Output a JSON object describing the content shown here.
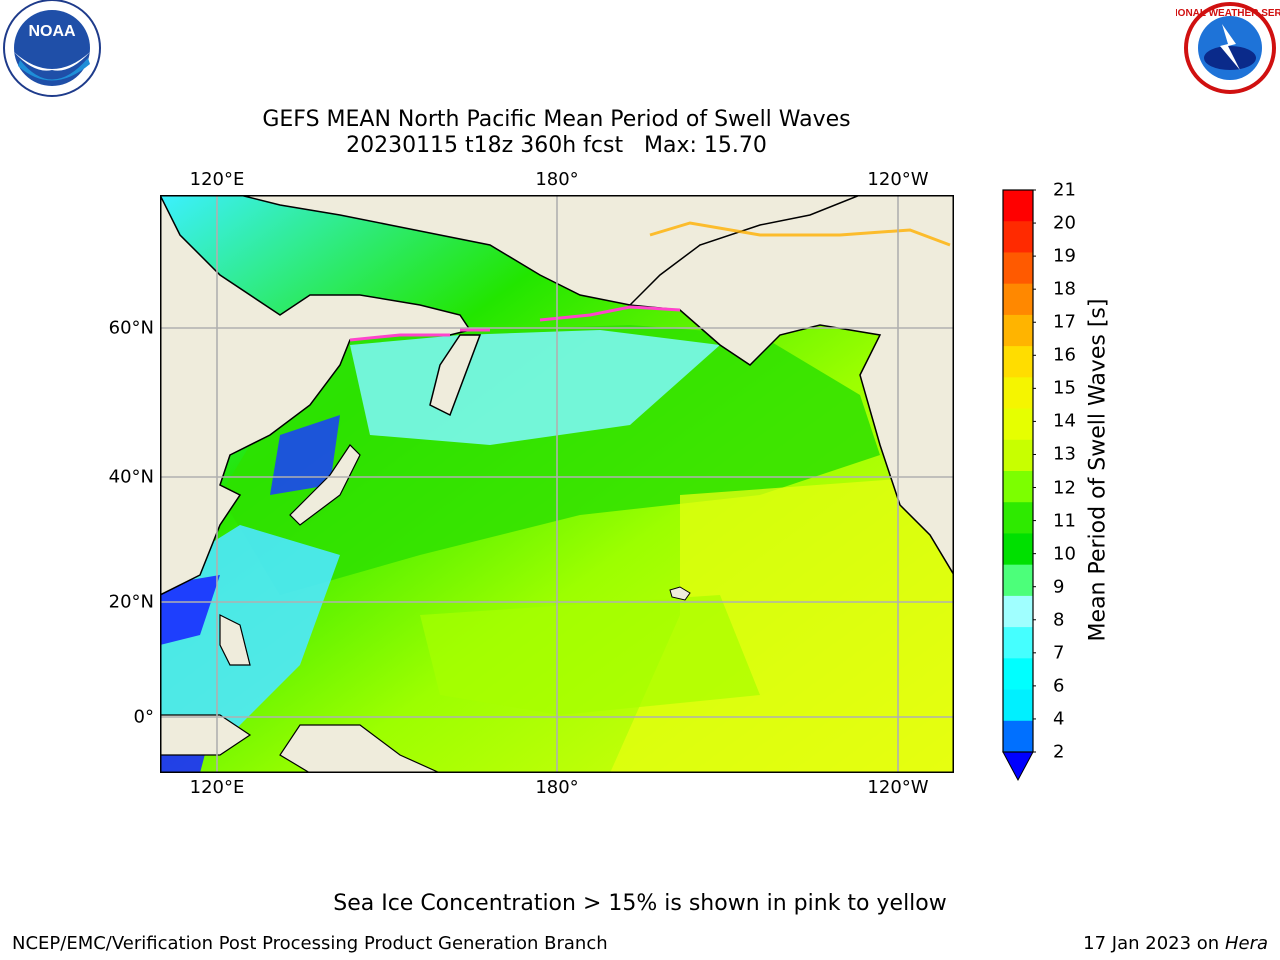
{
  "header": {
    "title_line1": "GEFS MEAN North Pacific Mean Period of Swell Waves",
    "title_line2": "20230115 t18z 360h fcst   Max: 15.70"
  },
  "logos": {
    "left": "noaa-logo",
    "right": "national-weather-service-logo"
  },
  "map": {
    "lon_ticks_top": [
      "120°E",
      "180°",
      "120°W"
    ],
    "lon_ticks_bottom": [
      "120°E",
      "180°",
      "120°W"
    ],
    "lat_ticks": [
      "60°N",
      "40°N",
      "20°N",
      "0°"
    ],
    "land_color": "#efecdc",
    "grid_color": "#b0b0b0"
  },
  "colorbar": {
    "title": "Mean Period of Swell Waves [s]",
    "labels": [
      "21",
      "20",
      "19",
      "18",
      "17",
      "16",
      "15",
      "14",
      "13",
      "12",
      "11",
      "10",
      "9",
      "8",
      "7",
      "6",
      "4",
      "2"
    ],
    "colors": [
      "#ff0000",
      "#ff2a00",
      "#ff5a00",
      "#ff8800",
      "#ffb400",
      "#ffdd00",
      "#f5f500",
      "#e6ff00",
      "#c8ff00",
      "#7cff00",
      "#2eea00",
      "#00e000",
      "#4cff7a",
      "#a0ffff",
      "#45ffff",
      "#00ffff",
      "#00f0ff",
      "#0070ff",
      "#0000ff"
    ]
  },
  "footer": {
    "ice_note": "Sea Ice Concentration > 15% is shown in pink to yellow",
    "branch": "NCEP/EMC/Verification Post Processing Product Generation Branch",
    "date_prefix": "17 Jan 2023 on ",
    "host": "Hera"
  }
}
